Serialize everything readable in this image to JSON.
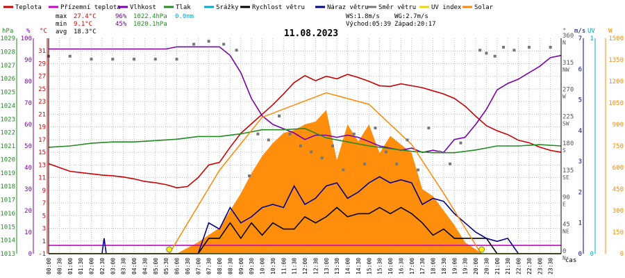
{
  "chart_data": {
    "type": "line",
    "title": "11.08.2023",
    "legend": [
      {
        "label": "Teplota",
        "color": "#cc0000"
      },
      {
        "label": "Přízemní teplota",
        "color": "#cc00cc"
      },
      {
        "label": "Vlhkost",
        "color": "#7a00aa"
      },
      {
        "label": "Tlak",
        "color": "#228b22"
      },
      {
        "label": "Srážky",
        "color": "#00aacc"
      },
      {
        "label": "Rychlost větru",
        "color": "#000000"
      },
      {
        "label": "Náraz větru",
        "color": "#00008b"
      },
      {
        "label": "Směr větru",
        "color": "#777777"
      },
      {
        "label": "UV index",
        "color": "#e8d800"
      },
      {
        "label": "Solar",
        "color": "#ff8800"
      }
    ],
    "stats": {
      "max_label": "max",
      "max_temp": "27.4°C",
      "max_hum": "96%",
      "max_press": "1022.4hPa",
      "max_rain": "0.0mm",
      "min_label": "min",
      "min_temp": "9.1°C",
      "min_hum": "45%",
      "min_press": "1020.1hPa",
      "avg_label": "avg",
      "avg_temp": "18.3°C"
    },
    "wind_stats": {
      "ws": "WS:1.8m/s",
      "wg": "WG:2.7m/s",
      "sunrise": "Východ:05:39",
      "sunset": "Západ:20:17"
    },
    "axis_units": {
      "hpa": "hPa",
      "percent": "%",
      "celsius": "°C",
      "degree": "°",
      "ms": "m/s",
      "uv": "UV",
      "watt": "W",
      "time": "čas"
    },
    "x_ticks": [
      "00:00",
      "00:30",
      "01:00",
      "01:30",
      "02:00",
      "02:30",
      "03:00",
      "03:30",
      "04:00",
      "04:30",
      "05:00",
      "05:30",
      "06:00",
      "06:30",
      "07:00",
      "07:30",
      "08:00",
      "08:30",
      "09:00",
      "09:30",
      "10:00",
      "10:30",
      "11:00",
      "11:30",
      "12:00",
      "12:30",
      "13:00",
      "13:30",
      "14:00",
      "14:30",
      "15:00",
      "15:30",
      "16:00",
      "16:30",
      "17:00",
      "17:30",
      "18:00",
      "18:30",
      "19:00",
      "19:30",
      "20:00",
      "20:30",
      "21:00",
      "21:30",
      "22:00",
      "22:30",
      "23:00",
      "23:30"
    ],
    "x_range_hours": [
      0,
      24
    ],
    "y_axes": {
      "pressure_hpa": {
        "ticks": [
          "1013",
          "1014",
          "1015",
          "1016",
          "1017",
          "1018",
          "1019",
          "1020",
          "1021",
          "1022",
          "1023",
          "1024",
          "1025",
          "1026",
          "1027",
          "1028",
          "1029"
        ],
        "range": [
          1013,
          1029
        ]
      },
      "humidity_percent": {
        "ticks": [
          "0",
          "10",
          "20",
          "30",
          "40",
          "50",
          "60",
          "70",
          "80",
          "90",
          "100"
        ],
        "range": [
          0,
          100
        ]
      },
      "temperature_c": {
        "ticks": [
          "-1",
          "1",
          "3",
          "5",
          "7",
          "9",
          "11",
          "13",
          "15",
          "17",
          "19",
          "21",
          "23",
          "25",
          "27",
          "29",
          "31"
        ],
        "range": [
          -1,
          33
        ]
      },
      "direction_deg": {
        "ticks": [
          {
            "v": "0",
            "d": "N"
          },
          {
            "v": "45",
            "d": "NE"
          },
          {
            "v": "90",
            "d": "E"
          },
          {
            "v": "135",
            "d": "SE"
          },
          {
            "v": "180",
            "d": "S"
          },
          {
            "v": "225",
            "d": "SW"
          },
          {
            "v": "270",
            "d": "W"
          },
          {
            "v": "315",
            "d": "NW"
          },
          {
            "v": "360",
            "d": "N"
          }
        ],
        "range": [
          0,
          360
        ]
      },
      "wind_ms": {
        "ticks": [
          "0",
          "1",
          "2",
          "3",
          "4",
          "5",
          "6",
          "7"
        ],
        "range": [
          0,
          7
        ]
      },
      "uv": {
        "ticks": [
          "0",
          "1"
        ],
        "range": [
          0,
          1
        ]
      },
      "solar_w": {
        "ticks": [
          "0",
          "150",
          "300",
          "450",
          "600",
          "750",
          "900",
          "1050",
          "1200",
          "1350",
          "1500"
        ],
        "range": [
          0,
          1500
        ]
      }
    },
    "grid": true,
    "series": [
      {
        "name": "Teplota",
        "unit": "°C",
        "color": "#cc0000",
        "x": [
          0,
          0.5,
          1,
          1.5,
          2,
          2.5,
          3,
          3.5,
          4,
          4.5,
          5,
          5.5,
          6,
          6.5,
          7,
          7.5,
          8,
          8.5,
          9,
          9.5,
          10,
          10.5,
          11,
          11.5,
          12,
          12.5,
          13,
          13.5,
          14,
          14.5,
          15,
          15.5,
          16,
          16.5,
          17,
          17.5,
          18,
          18.5,
          19,
          19.5,
          20,
          20.5,
          21,
          21.5,
          22,
          22.5,
          23,
          23.5,
          24
        ],
        "y": [
          13.2,
          12.6,
          12.0,
          11.8,
          11.6,
          11.4,
          11.3,
          11.1,
          10.8,
          10.4,
          10.2,
          9.9,
          9.4,
          9.6,
          11.0,
          13.0,
          13.4,
          15.8,
          18.0,
          19.5,
          21.0,
          22.5,
          24.2,
          26.0,
          27.1,
          26.3,
          27.0,
          26.6,
          27.3,
          26.8,
          26.2,
          25.5,
          25.4,
          25.8,
          25.5,
          25.2,
          24.7,
          24.2,
          23.5,
          22.3,
          20.7,
          19.2,
          18.4,
          17.8,
          16.9,
          16.5,
          15.8,
          15.3,
          15.0
        ]
      },
      {
        "name": "Přízemní teplota",
        "unit": "°C",
        "color": "#cc00cc",
        "x": [
          0,
          24
        ],
        "y": [
          0.3,
          0.3
        ]
      },
      {
        "name": "Vlhkost",
        "unit": "%",
        "color": "#7a00aa",
        "x": [
          0,
          0.5,
          1,
          1.5,
          2,
          2.5,
          3,
          3.5,
          4,
          4.5,
          5,
          5.5,
          6,
          6.5,
          7,
          7.5,
          8,
          8.5,
          9,
          9.5,
          10,
          10.5,
          11,
          11.5,
          12,
          12.5,
          13,
          13.5,
          14,
          14.5,
          15,
          15.5,
          16,
          16.5,
          17,
          17.5,
          18,
          18.5,
          19,
          19.5,
          20,
          20.5,
          21,
          21.5,
          22,
          22.5,
          23,
          23.5,
          24
        ],
        "y": [
          95,
          95,
          95,
          95,
          95,
          95,
          95,
          95,
          95,
          95,
          95,
          95,
          96,
          96,
          96,
          96,
          96,
          92,
          84,
          72,
          64,
          60,
          58,
          56,
          53,
          55,
          55,
          54,
          55,
          54,
          52,
          50,
          49,
          48,
          49,
          47,
          48,
          47,
          53,
          54,
          60,
          67,
          76,
          79,
          81,
          84,
          87,
          91,
          92
        ]
      },
      {
        "name": "Tlak",
        "unit": "hPa",
        "color": "#228b22",
        "x": [
          0,
          1,
          2,
          3,
          4,
          5,
          6,
          7,
          8,
          9,
          10,
          11,
          12,
          13,
          14,
          15,
          16,
          17,
          18,
          19,
          20,
          21,
          22,
          23,
          24
        ],
        "y": [
          1020.9,
          1021.0,
          1021.2,
          1021.3,
          1021.3,
          1021.4,
          1021.5,
          1021.7,
          1021.7,
          1021.9,
          1022.2,
          1022.2,
          1022.3,
          1021.6,
          1021.3,
          1021.0,
          1020.8,
          1020.6,
          1020.5,
          1020.5,
          1020.7,
          1021.0,
          1021.0,
          1021.1,
          1021.0
        ]
      },
      {
        "name": "Srážky",
        "unit": "mm",
        "color": "#00aacc",
        "x": [
          0,
          24
        ],
        "y": [
          0,
          0
        ]
      },
      {
        "name": "Rychlost větru",
        "unit": "m/s",
        "color": "#000000",
        "x": [
          0,
          7,
          7.5,
          8,
          8.5,
          9,
          9.5,
          10,
          10.5,
          11,
          11.5,
          12,
          12.5,
          13,
          13.5,
          14,
          14.5,
          15,
          15.5,
          16,
          16.5,
          17,
          17.5,
          18,
          18.5,
          19,
          19.5,
          20,
          20.5,
          21,
          24
        ],
        "y": [
          0,
          0,
          0.5,
          0.5,
          1.0,
          0.5,
          1.0,
          0.6,
          1.0,
          0.8,
          0.8,
          1.2,
          1.0,
          1.2,
          1.5,
          1.2,
          1.3,
          1.3,
          1.5,
          1.3,
          1.5,
          1.3,
          1.0,
          0.6,
          0.8,
          0.5,
          0.5,
          0.5,
          0.5,
          0,
          0
        ]
      },
      {
        "name": "Náraz větru",
        "unit": "m/s",
        "color": "#00008b",
        "x": [
          0,
          2.5,
          2.6,
          2.7,
          7,
          7.5,
          8,
          8.5,
          9,
          9.5,
          10,
          10.5,
          11,
          11.5,
          12,
          12.5,
          13,
          13.5,
          14,
          14.5,
          15,
          15.5,
          16,
          16.5,
          17,
          17.5,
          18,
          18.5,
          19,
          19.5,
          20,
          20.5,
          21,
          21.5,
          22,
          24
        ],
        "y": [
          0,
          0,
          0.5,
          0,
          0,
          1.0,
          0.8,
          1.5,
          1.0,
          1.2,
          1.5,
          1.6,
          1.5,
          2.2,
          1.6,
          1.8,
          2.2,
          2.3,
          1.8,
          2.0,
          2.3,
          2.5,
          2.3,
          2.4,
          2.3,
          1.6,
          1.8,
          1.7,
          1.3,
          1.0,
          0.7,
          0.5,
          0.4,
          0.5,
          0,
          0
        ]
      },
      {
        "name": "Směr větru",
        "unit": "°",
        "color": "#777777",
        "x": [
          0,
          1,
          2,
          3,
          4,
          5,
          6,
          6.8,
          7.5,
          8.2,
          8.8,
          9.4,
          9.8,
          10.3,
          10.8,
          11.3,
          11.8,
          12.3,
          12.8,
          13.3,
          13.8,
          14.3,
          14.8,
          15.3,
          15.8,
          16.3,
          16.8,
          17.3,
          17.8,
          18.3,
          18.8,
          19.3,
          20.2,
          20.5,
          20.9,
          21.3,
          21.8,
          22.5,
          23.5
        ],
        "y": [
          330,
          330,
          325,
          325,
          325,
          325,
          325,
          350,
          355,
          350,
          340,
          130,
          200,
          190,
          230,
          200,
          180,
          170,
          160,
          180,
          140,
          200,
          150,
          210,
          170,
          150,
          190,
          140,
          210,
          170,
          150,
          185,
          340,
          335,
          330,
          345,
          340,
          345,
          345
        ]
      },
      {
        "name": "UV index",
        "unit": "",
        "color": "#e8d800",
        "x": [
          0,
          24
        ],
        "y": [
          0,
          0
        ]
      },
      {
        "name": "Solar",
        "unit": "W",
        "color": "#ff8800",
        "x": [
          0,
          5.6,
          6,
          7,
          8,
          8.5,
          9,
          9.5,
          10,
          10.5,
          11,
          11.5,
          12,
          12.5,
          13,
          13.5,
          14,
          14.5,
          15,
          15.5,
          16,
          16.5,
          17,
          17.5,
          18,
          18.5,
          19,
          19.5,
          20,
          20.3,
          24
        ],
        "y": [
          0,
          0,
          0,
          80,
          180,
          300,
          420,
          560,
          680,
          770,
          840,
          860,
          900,
          920,
          1000,
          650,
          900,
          780,
          900,
          700,
          820,
          760,
          700,
          450,
          400,
          300,
          200,
          80,
          30,
          0,
          0
        ]
      },
      {
        "name": "Solar max",
        "unit": "W",
        "color": "#ff8800",
        "x": [
          5.65,
          8,
          10,
          13,
          15,
          17,
          18.5,
          20.25
        ],
        "y": [
          0,
          580,
          950,
          1120,
          1040,
          760,
          420,
          0
        ]
      }
    ],
    "sun_markers": [
      5.65,
      20.28
    ]
  }
}
